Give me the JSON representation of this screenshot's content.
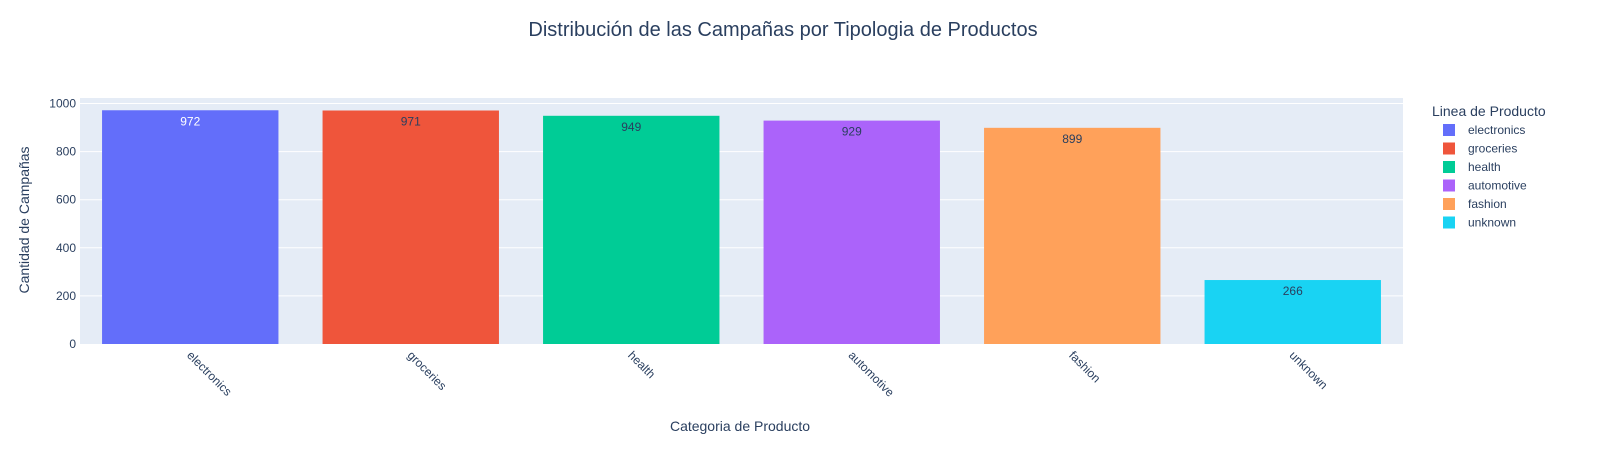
{
  "chart_data": {
    "type": "bar",
    "title": "Distribución de las Campañas por Tipologia de Productos",
    "xlabel": "Categoria de Producto",
    "ylabel": "Cantidad de Campañas",
    "categories": [
      "electronics",
      "groceries",
      "health",
      "automotive",
      "fashion",
      "unknown"
    ],
    "values": [
      972,
      971,
      949,
      929,
      899,
      266
    ],
    "value_labels": [
      "972",
      "971",
      "949",
      "929",
      "899",
      "266"
    ],
    "colors": [
      "#636EFA",
      "#EF553B",
      "#00CC96",
      "#AB63FA",
      "#FFA15A",
      "#19D3F3"
    ],
    "ylim": [
      0,
      1023
    ],
    "yticks": [
      0,
      200,
      400,
      600,
      800,
      1000
    ],
    "ytick_labels": [
      "0",
      "200",
      "400",
      "600",
      "800",
      "1000"
    ],
    "grid": true,
    "legend": {
      "title": "Linea de Producto",
      "placement": "right",
      "entries": [
        "electronics",
        "groceries",
        "health",
        "automotive",
        "fashion",
        "unknown"
      ]
    },
    "plot_bgcolor": "#E5ECF6",
    "font_color": "#2A3F5F",
    "xtick_angle": 45
  }
}
